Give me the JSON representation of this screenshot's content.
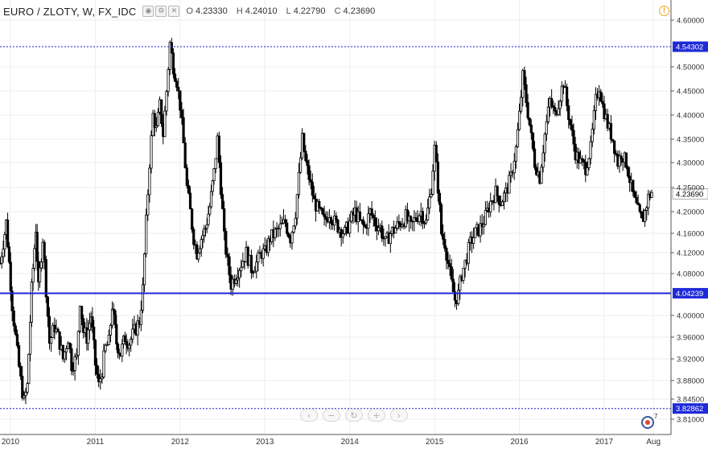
{
  "header": {
    "symbol": "EURO / ZLOTY, W, FX_IDC",
    "open_label": "O",
    "open": "4.23330",
    "high_label": "H",
    "high": "4.24010",
    "low_label": "L",
    "low": "4.22790",
    "close_label": "C",
    "close": "4.23690",
    "icons": [
      "eye-icon",
      "gear-icon",
      "close-icon"
    ]
  },
  "colors": {
    "candle": "#000000",
    "level_line": "#2222dd",
    "dotted_line": "#1b1bd6",
    "price_tag_bg": "#1f2ad8",
    "last_price_tag_bg": "#ffffff",
    "grid": "#ededed",
    "alert": "#f7a21b"
  },
  "nav_icons": [
    "chevron-left-icon",
    "minus-icon",
    "reset-icon",
    "plus-icon",
    "chevron-right-icon"
  ],
  "chart_data": {
    "type": "candlestick",
    "title": "EURO / ZLOTY, W, FX_IDC",
    "xlabel": "",
    "ylabel": "",
    "ylim": [
      3.8,
      4.61
    ],
    "grid": true,
    "x_ticks": [
      {
        "label": "2010",
        "t": 2010.0
      },
      {
        "label": "2011",
        "t": 2011.0
      },
      {
        "label": "2012",
        "t": 2012.0
      },
      {
        "label": "2013",
        "t": 2013.0
      },
      {
        "label": "2014",
        "t": 2014.0
      },
      {
        "label": "2015",
        "t": 2015.0
      },
      {
        "label": "2016",
        "t": 2016.0
      },
      {
        "label": "2017",
        "t": 2017.0
      },
      {
        "label": "Aug",
        "t": 2017.58
      }
    ],
    "y_ticks": [
      "4.60000",
      "4.50000",
      "4.45000",
      "4.40000",
      "4.35000",
      "4.30000",
      "4.25000",
      "4.20000",
      "4.16000",
      "4.12000",
      "4.08000",
      "4.00000",
      "3.96000",
      "3.92000",
      "3.88000",
      "3.84500",
      "3.81000"
    ],
    "horizontal_lines": [
      {
        "value": 4.54302,
        "label": "4.54302",
        "style": "dotted"
      },
      {
        "value": 4.04239,
        "label": "4.04239",
        "style": "solid"
      },
      {
        "value": 3.82862,
        "label": "3.82862",
        "style": "dotted"
      }
    ],
    "last_price": {
      "value": 4.2369,
      "label": "4.23690"
    },
    "series": [
      {
        "values": [
          [
            2009.88,
            4.1
          ],
          [
            2009.95,
            4.18
          ],
          [
            2010.02,
            4.02
          ],
          [
            2010.08,
            3.93
          ],
          [
            2010.12,
            3.88
          ],
          [
            2010.16,
            3.84
          ],
          [
            2010.2,
            3.87
          ],
          [
            2010.25,
            4.05
          ],
          [
            2010.3,
            4.17
          ],
          [
            2010.33,
            4.05
          ],
          [
            2010.38,
            4.15
          ],
          [
            2010.42,
            4.05
          ],
          [
            2010.46,
            3.95
          ],
          [
            2010.52,
            3.98
          ],
          [
            2010.58,
            3.95
          ],
          [
            2010.62,
            3.92
          ],
          [
            2010.68,
            3.96
          ],
          [
            2010.72,
            3.91
          ],
          [
            2010.78,
            3.92
          ],
          [
            2010.82,
            4.03
          ],
          [
            2010.86,
            3.97
          ],
          [
            2010.9,
            3.96
          ],
          [
            2010.95,
            4.0
          ],
          [
            2011.0,
            3.91
          ],
          [
            2011.04,
            3.87
          ],
          [
            2011.08,
            3.9
          ],
          [
            2011.12,
            3.94
          ],
          [
            2011.16,
            3.95
          ],
          [
            2011.2,
            4.02
          ],
          [
            2011.25,
            3.95
          ],
          [
            2011.3,
            3.93
          ],
          [
            2011.35,
            3.96
          ],
          [
            2011.4,
            3.95
          ],
          [
            2011.46,
            3.97
          ],
          [
            2011.52,
            3.99
          ],
          [
            2011.56,
            4.05
          ],
          [
            2011.6,
            4.18
          ],
          [
            2011.64,
            4.3
          ],
          [
            2011.68,
            4.4
          ],
          [
            2011.72,
            4.37
          ],
          [
            2011.76,
            4.42
          ],
          [
            2011.8,
            4.36
          ],
          [
            2011.84,
            4.45
          ],
          [
            2011.88,
            4.55
          ],
          [
            2011.92,
            4.5
          ],
          [
            2011.96,
            4.47
          ],
          [
            2012.0,
            4.42
          ],
          [
            2012.04,
            4.34
          ],
          [
            2012.08,
            4.25
          ],
          [
            2012.12,
            4.2
          ],
          [
            2012.16,
            4.15
          ],
          [
            2012.2,
            4.12
          ],
          [
            2012.25,
            4.15
          ],
          [
            2012.3,
            4.17
          ],
          [
            2012.35,
            4.21
          ],
          [
            2012.4,
            4.28
          ],
          [
            2012.44,
            4.35
          ],
          [
            2012.48,
            4.25
          ],
          [
            2012.52,
            4.15
          ],
          [
            2012.56,
            4.1
          ],
          [
            2012.6,
            4.06
          ],
          [
            2012.66,
            4.08
          ],
          [
            2012.72,
            4.1
          ],
          [
            2012.78,
            4.12
          ],
          [
            2012.84,
            4.09
          ],
          [
            2012.9,
            4.1
          ],
          [
            2012.96,
            4.12
          ],
          [
            2013.0,
            4.12
          ],
          [
            2013.06,
            4.15
          ],
          [
            2013.12,
            4.16
          ],
          [
            2013.18,
            4.17
          ],
          [
            2013.24,
            4.18
          ],
          [
            2013.3,
            4.15
          ],
          [
            2013.36,
            4.2
          ],
          [
            2013.4,
            4.27
          ],
          [
            2013.44,
            4.35
          ],
          [
            2013.48,
            4.3
          ],
          [
            2013.52,
            4.27
          ],
          [
            2013.58,
            4.22
          ],
          [
            2013.64,
            4.2
          ],
          [
            2013.7,
            4.18
          ],
          [
            2013.76,
            4.2
          ],
          [
            2013.82,
            4.18
          ],
          [
            2013.88,
            4.17
          ],
          [
            2013.94,
            4.16
          ],
          [
            2014.0,
            4.18
          ],
          [
            2014.06,
            4.2
          ],
          [
            2014.12,
            4.18
          ],
          [
            2014.18,
            4.17
          ],
          [
            2014.24,
            4.2
          ],
          [
            2014.3,
            4.18
          ],
          [
            2014.36,
            4.17
          ],
          [
            2014.42,
            4.14
          ],
          [
            2014.48,
            4.16
          ],
          [
            2014.54,
            4.17
          ],
          [
            2014.6,
            4.18
          ],
          [
            2014.66,
            4.19
          ],
          [
            2014.72,
            4.17
          ],
          [
            2014.78,
            4.19
          ],
          [
            2014.84,
            4.2
          ],
          [
            2014.9,
            4.18
          ],
          [
            2014.96,
            4.25
          ],
          [
            2015.0,
            4.33
          ],
          [
            2015.04,
            4.25
          ],
          [
            2015.08,
            4.16
          ],
          [
            2015.12,
            4.14
          ],
          [
            2015.16,
            4.1
          ],
          [
            2015.2,
            4.06
          ],
          [
            2015.24,
            4.03
          ],
          [
            2015.28,
            4.04
          ],
          [
            2015.32,
            4.08
          ],
          [
            2015.36,
            4.1
          ],
          [
            2015.42,
            4.14
          ],
          [
            2015.48,
            4.16
          ],
          [
            2015.54,
            4.17
          ],
          [
            2015.6,
            4.19
          ],
          [
            2015.66,
            4.22
          ],
          [
            2015.72,
            4.24
          ],
          [
            2015.78,
            4.22
          ],
          [
            2015.84,
            4.24
          ],
          [
            2015.9,
            4.27
          ],
          [
            2015.96,
            4.33
          ],
          [
            2016.0,
            4.4
          ],
          [
            2016.04,
            4.48
          ],
          [
            2016.08,
            4.43
          ],
          [
            2016.12,
            4.38
          ],
          [
            2016.18,
            4.3
          ],
          [
            2016.24,
            4.27
          ],
          [
            2016.3,
            4.36
          ],
          [
            2016.36,
            4.43
          ],
          [
            2016.42,
            4.4
          ],
          [
            2016.48,
            4.44
          ],
          [
            2016.52,
            4.47
          ],
          [
            2016.56,
            4.42
          ],
          [
            2016.6,
            4.38
          ],
          [
            2016.66,
            4.32
          ],
          [
            2016.72,
            4.3
          ],
          [
            2016.78,
            4.29
          ],
          [
            2016.84,
            4.33
          ],
          [
            2016.9,
            4.43
          ],
          [
            2016.94,
            4.46
          ],
          [
            2016.98,
            4.42
          ],
          [
            2017.04,
            4.38
          ],
          [
            2017.1,
            4.35
          ],
          [
            2017.16,
            4.3
          ],
          [
            2017.2,
            4.32
          ],
          [
            2017.26,
            4.3
          ],
          [
            2017.32,
            4.25
          ],
          [
            2017.36,
            4.22
          ],
          [
            2017.4,
            4.2
          ],
          [
            2017.44,
            4.18
          ],
          [
            2017.48,
            4.2
          ],
          [
            2017.52,
            4.23
          ],
          [
            2017.56,
            4.24
          ]
        ]
      }
    ]
  }
}
